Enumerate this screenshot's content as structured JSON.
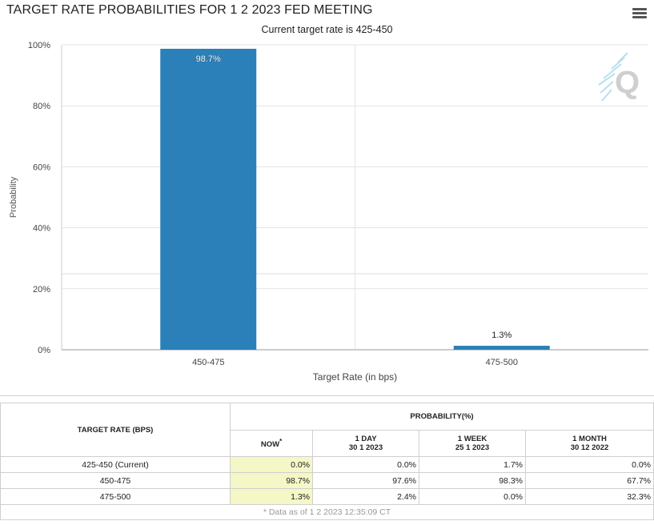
{
  "title": "TARGET RATE PROBABILITIES FOR 1 2 2023 FED MEETING",
  "subtitle": "Current target rate is 425-450",
  "chart_data": {
    "type": "bar",
    "categories": [
      "450-475",
      "475-500"
    ],
    "values": [
      98.7,
      1.3
    ],
    "data_labels": [
      "98.7%",
      "1.3%"
    ],
    "xlabel": "Target Rate (in bps)",
    "ylabel": "Probability",
    "ylim": [
      0,
      100
    ],
    "yticks": [
      "0%",
      "20%",
      "40%",
      "60%",
      "80%",
      "100%"
    ],
    "bar_color": "#2b80b9",
    "grid": true
  },
  "table": {
    "header_rate": "TARGET RATE (BPS)",
    "header_prob": "PROBABILITY(%)",
    "columns": [
      {
        "l1": "NOW",
        "l2": "*"
      },
      {
        "l1": "1 DAY",
        "l2": "30 1 2023"
      },
      {
        "l1": "1 WEEK",
        "l2": "25 1 2023"
      },
      {
        "l1": "1 MONTH",
        "l2": "30 12 2022"
      }
    ],
    "rows": [
      {
        "rate": "425-450 (Current)",
        "now": "0.0%",
        "d1": "0.0%",
        "w1": "1.7%",
        "m1": "0.0%"
      },
      {
        "rate": "450-475",
        "now": "98.7%",
        "d1": "97.6%",
        "w1": "98.3%",
        "m1": "67.7%"
      },
      {
        "rate": "475-500",
        "now": "1.3%",
        "d1": "2.4%",
        "w1": "0.0%",
        "m1": "32.3%"
      }
    ],
    "footnote": "* Data as of 1 2 2023 12:35:09 CT"
  }
}
